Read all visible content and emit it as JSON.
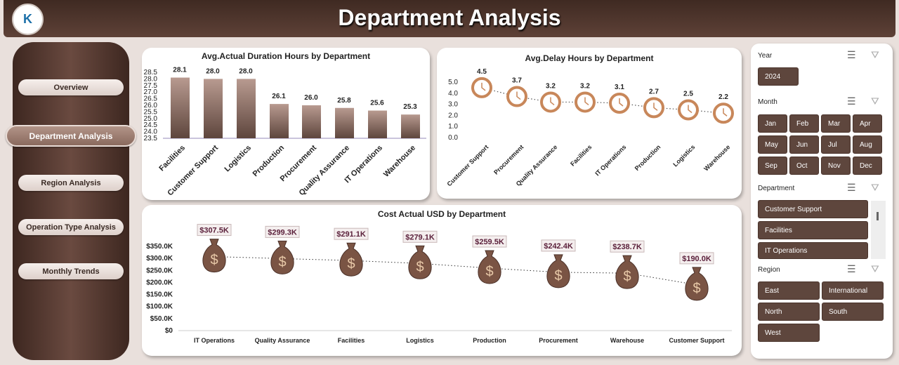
{
  "header": {
    "title": "Department Analysis",
    "logo_text": "K"
  },
  "nav": {
    "items": [
      {
        "label": "Overview"
      },
      {
        "label": "Department Analysis",
        "active": true
      },
      {
        "label": "Region Analysis"
      },
      {
        "label": "Operation Type Analysis"
      },
      {
        "label": "Monthly Trends"
      }
    ]
  },
  "colors": {
    "brand": "#5e463d",
    "bar": "#a88c82",
    "marker": "#c8875a"
  },
  "chart_data": [
    {
      "type": "bar",
      "title": "Avg.Actual Duration Hours by Department",
      "categories": [
        "Facilities",
        "Customer Support",
        "Logistics",
        "Production",
        "Procurement",
        "Quality Assurance",
        "IT Operations",
        "Warehouse"
      ],
      "values": [
        28.1,
        28.0,
        28.0,
        26.1,
        26.0,
        25.8,
        25.6,
        25.3
      ],
      "data_labels": [
        "28.1",
        "28.0",
        "28.0",
        "26.1",
        "26.0",
        "25.8",
        "25.6",
        "25.3"
      ],
      "ylim": [
        23.5,
        28.5
      ],
      "yticks": [
        "23.5",
        "24.0",
        "24.5",
        "25.0",
        "25.5",
        "26.0",
        "26.5",
        "27.0",
        "27.5",
        "28.0",
        "28.5"
      ],
      "grid": false
    },
    {
      "type": "line",
      "title": "Avg.Delay Hours by Department",
      "categories": [
        "Customer Support",
        "Procurement",
        "Quality Assurance",
        "Facilities",
        "IT Operations",
        "Production",
        "Logistics",
        "Warehouse"
      ],
      "values": [
        4.5,
        3.7,
        3.2,
        3.2,
        3.1,
        2.7,
        2.5,
        2.2
      ],
      "data_labels": [
        "4.5",
        "3.7",
        "3.2",
        "3.2",
        "3.1",
        "2.7",
        "2.5",
        "2.2"
      ],
      "ylim": [
        0,
        5
      ],
      "yticks": [
        "0.0",
        "1.0",
        "2.0",
        "3.0",
        "4.0",
        "5.0"
      ],
      "marker": "clock-icon",
      "grid": false
    },
    {
      "type": "line",
      "title": "Cost Actual USD by Department",
      "categories": [
        "IT Operations",
        "Quality Assurance",
        "Facilities",
        "Logistics",
        "Production",
        "Procurement",
        "Warehouse",
        "Customer Support"
      ],
      "values": [
        307.5,
        299.3,
        291.1,
        279.1,
        259.5,
        242.4,
        238.7,
        190.0
      ],
      "data_labels": [
        "$307.5K",
        "$299.3K",
        "$291.1K",
        "$279.1K",
        "$259.5K",
        "$242.4K",
        "$238.7K",
        "$190.0K"
      ],
      "ylim": [
        0,
        350
      ],
      "yticks": [
        "$0",
        "$50.0K",
        "$100.0K",
        "$150.0K",
        "$200.0K",
        "$250.0K",
        "$300.0K",
        "$350.0K"
      ],
      "marker": "money-bag-icon",
      "grid": false
    }
  ],
  "slicers": {
    "year": {
      "label": "Year",
      "items": [
        "2024"
      ]
    },
    "month": {
      "label": "Month",
      "items": [
        "Jan",
        "Feb",
        "Mar",
        "Apr",
        "May",
        "Jun",
        "Jul",
        "Aug",
        "Sep",
        "Oct",
        "Nov",
        "Dec"
      ]
    },
    "department": {
      "label": "Department",
      "items": [
        "Customer Support",
        "Facilities",
        "IT Operations"
      ]
    },
    "region": {
      "label": "Region",
      "items": [
        "East",
        "International",
        "North",
        "South",
        "West"
      ]
    }
  }
}
